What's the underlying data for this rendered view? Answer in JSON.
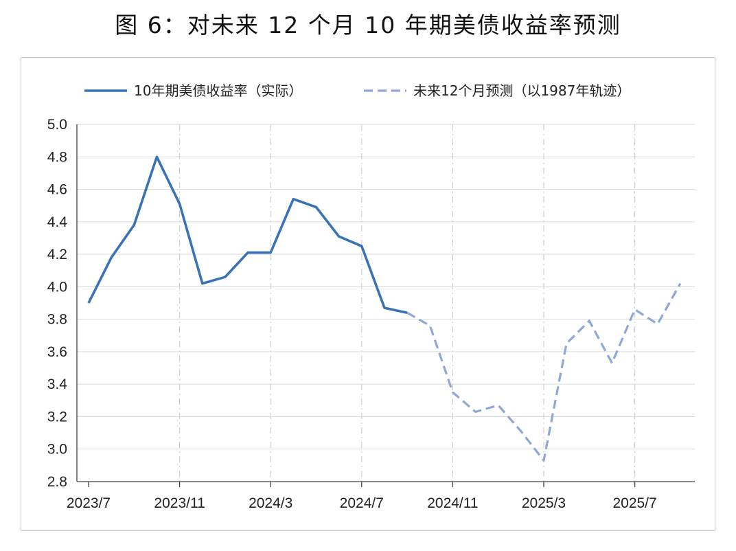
{
  "title": "图 6：对未来 12 个月 10 年期美债收益率预测",
  "chart_data": {
    "type": "line",
    "title": "图 6：对未来 12 个月 10 年期美债收益率预测",
    "xlabel": "",
    "ylabel": "",
    "x_tick_labels": [
      "2023/7",
      "2023/11",
      "2024/3",
      "2024/7",
      "2024/11",
      "2025/3",
      "2025/7"
    ],
    "y_ticks": [
      "2.8",
      "3.0",
      "3.2",
      "3.4",
      "3.6",
      "3.8",
      "4.0",
      "4.2",
      "4.4",
      "4.6",
      "4.8",
      "5.0"
    ],
    "ylim": [
      2.8,
      5.0
    ],
    "grid": "vertical dashed gridlines at x ticks, horizontal solid gridlines",
    "legend_position": "top",
    "series": [
      {
        "name": "10年期美债收益率（实际）",
        "style": "solid",
        "color": "#3a72b8",
        "x": [
          "2023/7",
          "2023/8",
          "2023/9",
          "2023/10",
          "2023/11",
          "2023/12",
          "2024/1",
          "2024/2",
          "2024/3",
          "2024/4",
          "2024/5",
          "2024/6",
          "2024/7",
          "2024/8",
          "2024/9"
        ],
        "values": [
          3.9,
          4.18,
          4.38,
          4.8,
          4.51,
          4.02,
          4.06,
          4.21,
          4.21,
          4.54,
          4.49,
          4.31,
          4.25,
          3.87,
          3.84
        ]
      },
      {
        "name": "未来12个月预测（以1987年轨迹）",
        "style": "dashed",
        "color": "#8fa8d8",
        "x": [
          "2024/9",
          "2024/10",
          "2024/11",
          "2024/12",
          "2025/1",
          "2025/2",
          "2025/3",
          "2025/4",
          "2025/5",
          "2025/6",
          "2025/7",
          "2025/8",
          "2025/9"
        ],
        "values": [
          3.84,
          3.76,
          3.35,
          3.23,
          3.27,
          3.11,
          2.93,
          3.65,
          3.79,
          3.53,
          3.86,
          3.77,
          4.02
        ]
      }
    ]
  }
}
